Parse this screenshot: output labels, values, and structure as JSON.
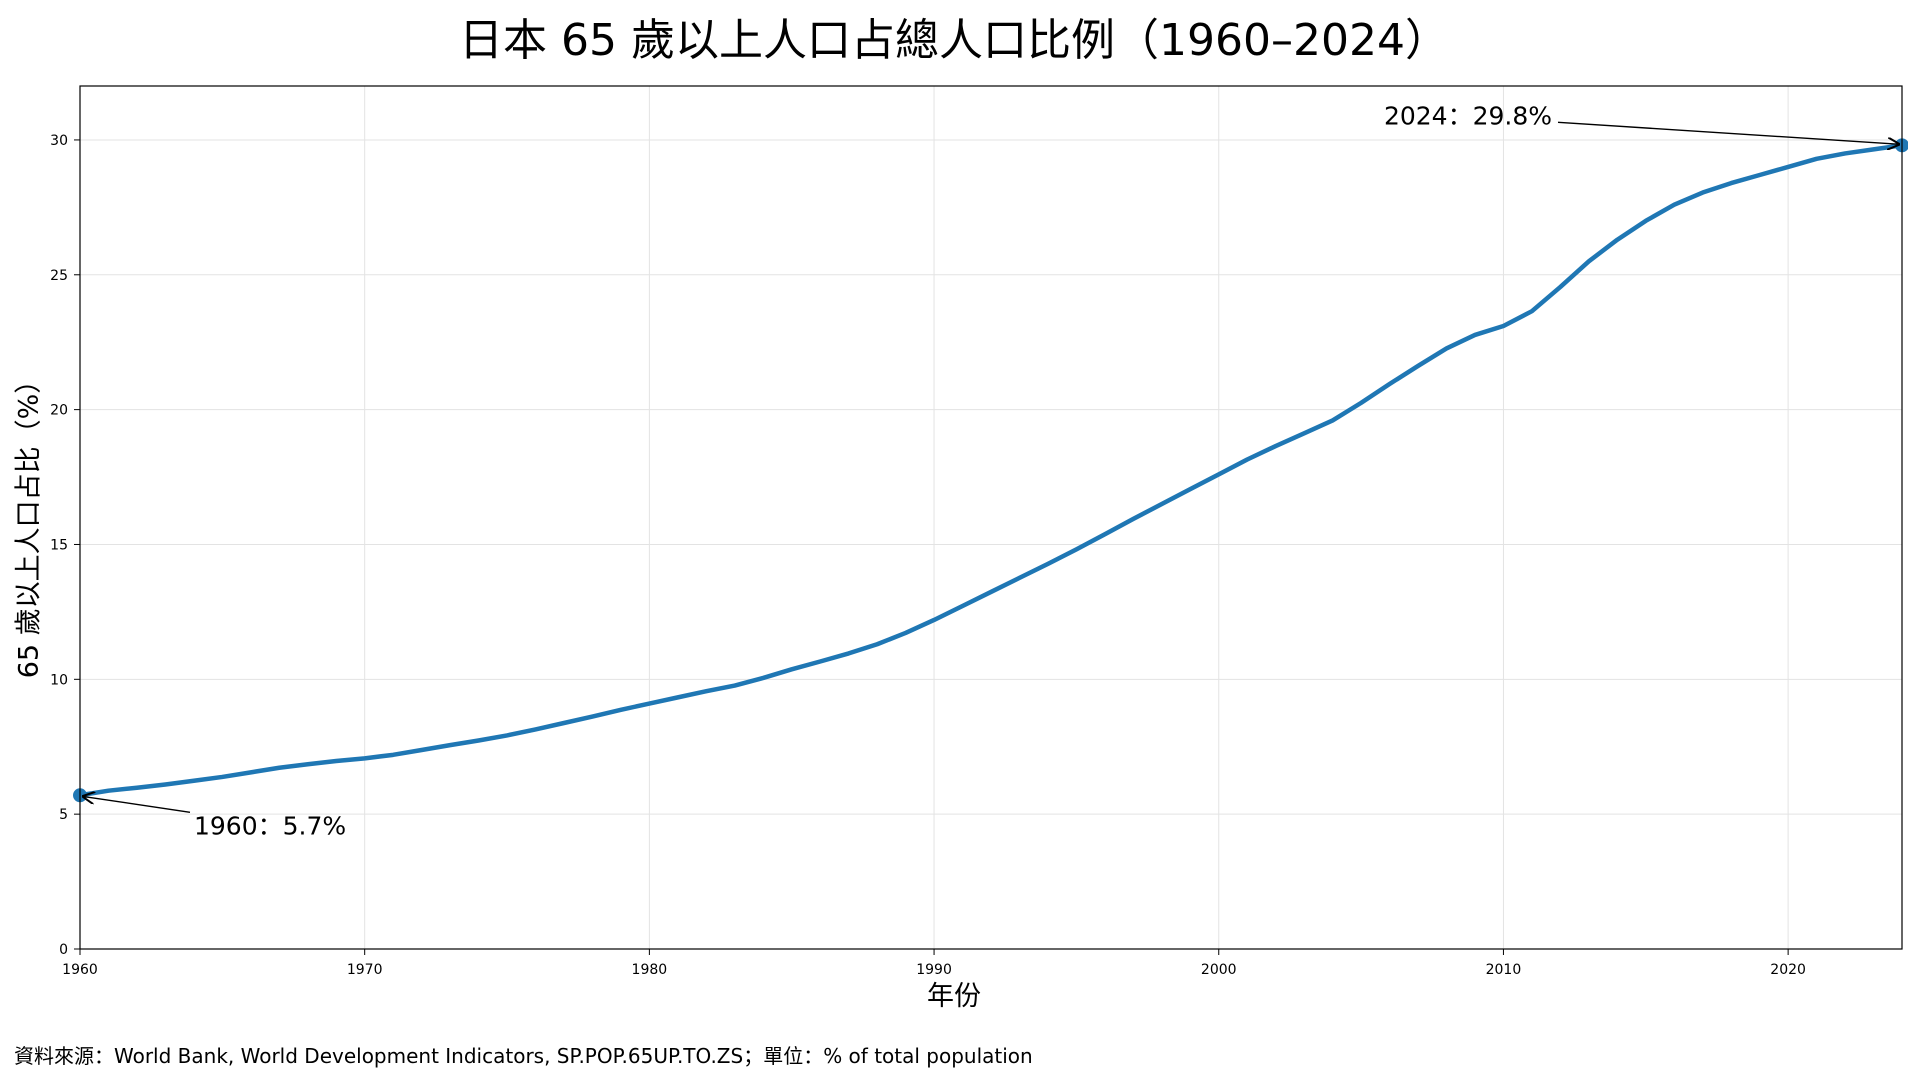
{
  "title": "日本 65 歲以上人口占總人口比例（1960–2024）",
  "source": "資料來源：World Bank, World Development Indicators, SP.POP.65UP.TO.ZS；單位：% of total population",
  "colors": {
    "line": "#1f77b4",
    "grid": "#e3e3e3",
    "axis": "#000000"
  },
  "chart_data": {
    "type": "line",
    "title": "日本 65 歲以上人口占總人口比例（1960–2024）",
    "xlabel": "年份",
    "ylabel": "65 歲以上人口占比（%）",
    "xlim": [
      1960,
      2024
    ],
    "ylim": [
      0,
      32
    ],
    "grid": true,
    "xticks": [
      1960,
      1970,
      1980,
      1990,
      2000,
      2010,
      2020
    ],
    "yticks": [
      0,
      5,
      10,
      15,
      20,
      25,
      30
    ],
    "x": [
      1960,
      1961,
      1962,
      1963,
      1964,
      1965,
      1966,
      1967,
      1968,
      1969,
      1970,
      1971,
      1972,
      1973,
      1974,
      1975,
      1976,
      1977,
      1978,
      1979,
      1980,
      1981,
      1982,
      1983,
      1984,
      1985,
      1986,
      1987,
      1988,
      1989,
      1990,
      1991,
      1992,
      1993,
      1994,
      1995,
      1996,
      1997,
      1998,
      1999,
      2000,
      2001,
      2002,
      2003,
      2004,
      2005,
      2006,
      2007,
      2008,
      2009,
      2010,
      2011,
      2012,
      2013,
      2014,
      2015,
      2016,
      2017,
      2018,
      2019,
      2020,
      2021,
      2022,
      2023,
      2024
    ],
    "series": [
      {
        "values": [
          5.7,
          5.87,
          5.98,
          6.1,
          6.24,
          6.38,
          6.55,
          6.72,
          6.85,
          6.97,
          7.07,
          7.2,
          7.38,
          7.56,
          7.73,
          7.92,
          8.14,
          8.38,
          8.62,
          8.87,
          9.1,
          9.33,
          9.56,
          9.77,
          10.05,
          10.37,
          10.66,
          10.96,
          11.3,
          11.72,
          12.2,
          12.72,
          13.24,
          13.76,
          14.28,
          14.82,
          15.38,
          15.95,
          16.5,
          17.05,
          17.6,
          18.15,
          18.65,
          19.12,
          19.6,
          20.25,
          20.95,
          21.62,
          22.27,
          22.77,
          23.1,
          23.65,
          24.55,
          25.5,
          26.3,
          27.0,
          27.6,
          28.05,
          28.4,
          28.7,
          29.0,
          29.3,
          29.5,
          29.65,
          29.8
        ]
      }
    ],
    "annotations": [
      {
        "text": "1960：5.7%",
        "x": 1960,
        "y": 5.7
      },
      {
        "text": "2024：29.8%",
        "x": 2024,
        "y": 29.8
      }
    ]
  }
}
